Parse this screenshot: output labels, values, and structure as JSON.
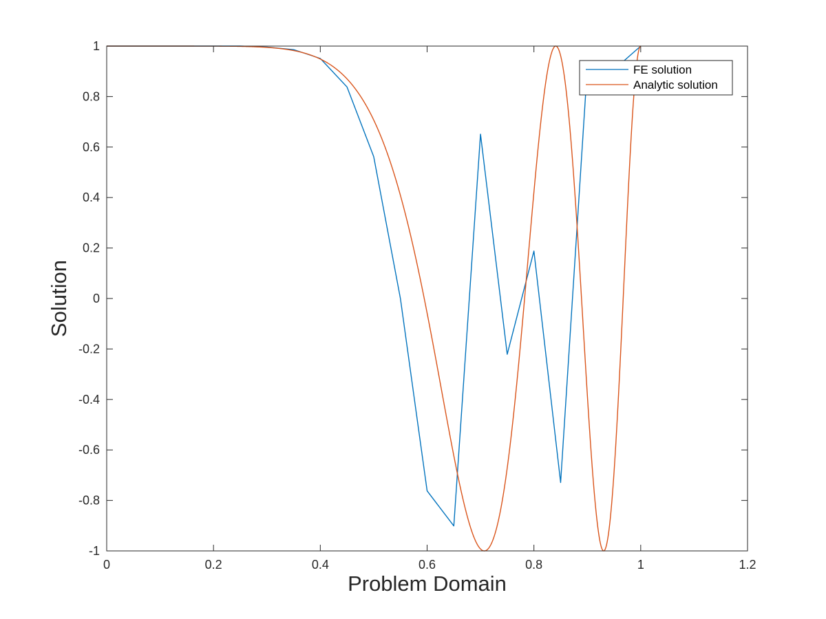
{
  "chart_data": {
    "type": "line",
    "xlabel": "Problem Domain",
    "ylabel": "Solution",
    "xlim": [
      0,
      1.2
    ],
    "ylim": [
      -1,
      1
    ],
    "x_ticks": [
      0,
      0.2,
      0.4,
      0.6,
      0.8,
      1,
      1.2
    ],
    "x_tick_labels": [
      "0",
      "0.2",
      "0.4",
      "0.6",
      "0.8",
      "1",
      "1.2"
    ],
    "y_ticks": [
      -1,
      -0.8,
      -0.6,
      -0.4,
      -0.2,
      0,
      0.2,
      0.4,
      0.6,
      0.8,
      1
    ],
    "y_tick_labels": [
      "-1",
      "-0.8",
      "-0.6",
      "-0.4",
      "-0.2",
      "0",
      "0.2",
      "0.4",
      "0.6",
      "0.8",
      "1"
    ],
    "grid": false,
    "legend_position": "top-right",
    "series": [
      {
        "name": "FE solution",
        "color": "#0072BD",
        "x": [
          0,
          0.05,
          0.1,
          0.15,
          0.2,
          0.25,
          0.3,
          0.35,
          0.4,
          0.45,
          0.5,
          0.55,
          0.6,
          0.65,
          0.7,
          0.75,
          0.8,
          0.85,
          0.9,
          0.95,
          1.0
        ],
        "y": [
          1.0,
          1.0,
          1.0,
          1.0,
          1.0,
          1.0,
          0.996,
          0.986,
          0.951,
          0.838,
          0.562,
          0.0,
          -0.762,
          -0.901,
          0.651,
          -0.221,
          0.188,
          -0.729,
          0.914,
          0.907,
          1.0
        ]
      },
      {
        "name": "Analytic solution",
        "color": "#D95319",
        "function": "cos(4*pi*x^4)",
        "x_range": [
          0,
          1
        ]
      }
    ]
  }
}
